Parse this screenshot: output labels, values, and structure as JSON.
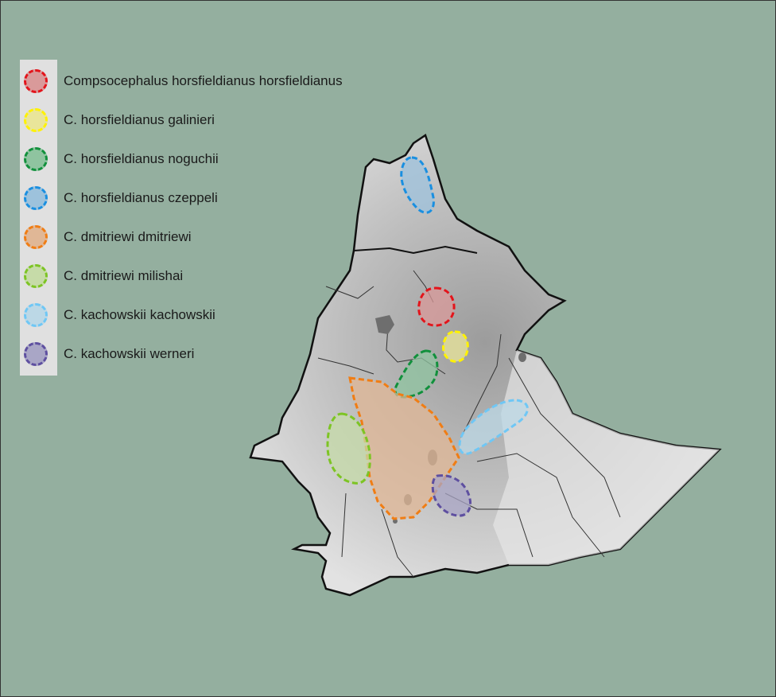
{
  "legend": [
    {
      "label": "Compsocephalus horsfieldianus horsfieldianus",
      "stroke": "#e3141b",
      "fill": "#d99a9a"
    },
    {
      "label": "C. horsfieldianus galinieri",
      "stroke": "#fff200",
      "fill": "#e9e59a"
    },
    {
      "label": "C. horsfieldianus noguchii",
      "stroke": "#11903c",
      "fill": "#8fc4a0"
    },
    {
      "label": "C. horsfieldianus czeppeli",
      "stroke": "#1a8fe0",
      "fill": "#9dc2dc"
    },
    {
      "label": "C. dmitriewi dmitriewi",
      "stroke": "#f07d14",
      "fill": "#e0b796"
    },
    {
      "label": "C. dmitriewi milishai",
      "stroke": "#7dc424",
      "fill": "#c6dba8"
    },
    {
      "label": "C. kachowskii kachowskii",
      "stroke": "#6fc7f5",
      "fill": "#bcd8e6"
    },
    {
      "label": "C. kachowskii werneri",
      "stroke": "#5e4fa0",
      "fill": "#a9a6c6"
    }
  ],
  "colors": {
    "background": "#94af9f",
    "land": "#d2d2d2",
    "border": "#111111",
    "lake": "#6e6e6e"
  }
}
